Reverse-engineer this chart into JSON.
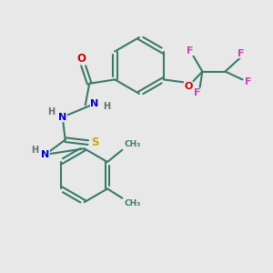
{
  "bg_color": "#e8e8e8",
  "atom_colors": {
    "C": "#3a7a6a",
    "N": "#0000cc",
    "O": "#cc0000",
    "S": "#ccaa00",
    "F": "#cc44bb",
    "H": "#607070"
  },
  "bond_color": "#3a7a6a",
  "bond_lw": 1.5
}
